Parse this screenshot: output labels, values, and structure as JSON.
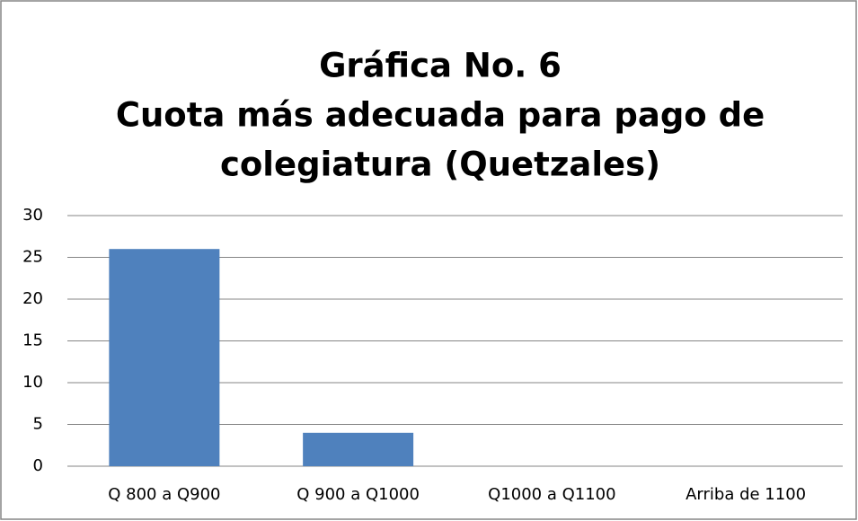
{
  "chart_data": {
    "type": "bar",
    "title": [
      "Gráfica No. 6",
      "Cuota más adecuada para pago de",
      "colegiatura (Quetzales)"
    ],
    "categories": [
      "Q 800 a Q900",
      "Q 900 a Q1000",
      "Q1000 a Q1100",
      "Arriba de 1100"
    ],
    "values": [
      26,
      4,
      0,
      0
    ],
    "color": "#4f81bd",
    "ylim": [
      0,
      30
    ],
    "yticks": [
      0,
      5,
      10,
      15,
      20,
      25,
      30
    ],
    "grid": true
  }
}
